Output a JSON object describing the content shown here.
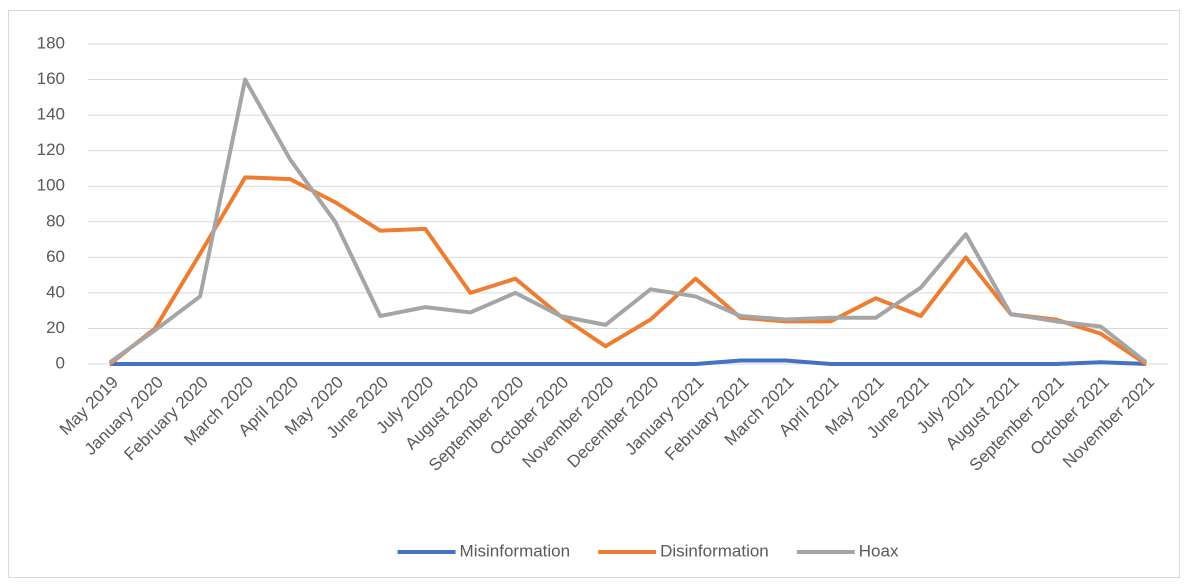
{
  "chart_data": {
    "type": "line",
    "categories": [
      "May 2019",
      "January 2020",
      "February 2020",
      "March 2020",
      "April 2020",
      "May 2020",
      "June 2020",
      "July 2020",
      "August 2020",
      "September 2020",
      "October 2020",
      "November 2020",
      "December 2020",
      "January 2021",
      "February 2021",
      "March 2021",
      "April 2021",
      "May 2021",
      "June 2021",
      "July 2021",
      "August 2021",
      "September 2021",
      "October 2021",
      "November 2021"
    ],
    "series": [
      {
        "name": "Misinformation",
        "color": "#4472c4",
        "values": [
          0,
          0,
          0,
          0,
          0,
          0,
          0,
          0,
          0,
          0,
          0,
          0,
          0,
          0,
          2,
          2,
          0,
          0,
          0,
          0,
          0,
          0,
          1,
          0
        ]
      },
      {
        "name": "Disinformation",
        "color": "#ed7d31",
        "values": [
          0,
          20,
          62,
          105,
          104,
          91,
          75,
          76,
          40,
          48,
          27,
          10,
          25,
          48,
          26,
          24,
          24,
          37,
          27,
          60,
          28,
          25,
          17,
          0
        ]
      },
      {
        "name": "Hoax",
        "color": "#a5a5a5",
        "values": [
          1,
          19,
          38,
          160,
          115,
          80,
          27,
          32,
          29,
          40,
          27,
          22,
          42,
          38,
          27,
          25,
          26,
          26,
          43,
          73,
          28,
          24,
          21,
          1
        ]
      }
    ],
    "ylim": [
      0,
      180
    ],
    "yticks": [
      0,
      20,
      40,
      60,
      80,
      100,
      120,
      140,
      160,
      180
    ],
    "grid": true,
    "legend": "bottom"
  }
}
